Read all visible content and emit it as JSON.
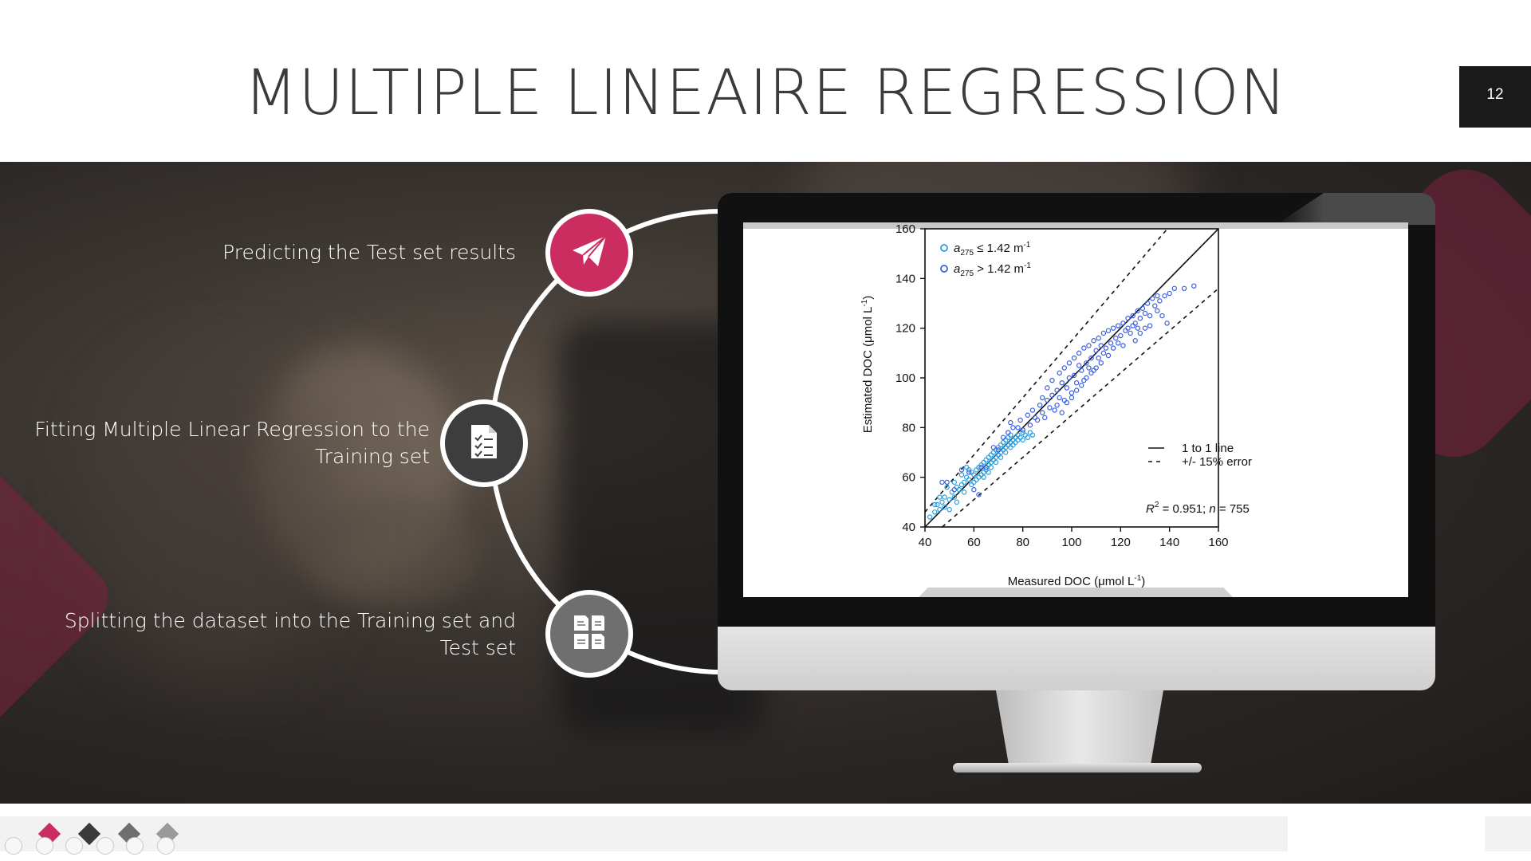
{
  "slide": {
    "title": "MULTIPLE LINEAIRE REGRESSION",
    "page_number": "12"
  },
  "steps": [
    {
      "label": "Predicting the Test set results",
      "icon": "paper-plane-icon",
      "color": "#cc2d61"
    },
    {
      "label_line1": "Fitting Multiple Linear Regression to the",
      "label_line2": "Training set",
      "icon": "checklist-document-icon",
      "color": "#3d3d3d"
    },
    {
      "label_line1": "Splitting the dataset into the Training set and",
      "label_line2": "Test set",
      "icon": "split-documents-icon",
      "color": "#6f6f6f"
    }
  ],
  "chart_data": {
    "type": "scatter",
    "xlabel": "Measured DOC (μmol L",
    "xlabel_sup": "-1",
    "xlabel_end": ")",
    "ylabel": "Estimated DOC (μmol L",
    "ylabel_sup": "-1",
    "ylabel_end": ")",
    "xlim": [
      40,
      160
    ],
    "ylim": [
      40,
      160
    ],
    "xticks": [
      40,
      60,
      80,
      100,
      120,
      140,
      160
    ],
    "yticks": [
      40,
      60,
      80,
      100,
      120,
      140,
      160
    ],
    "legend_top": [
      {
        "sym": "a",
        "sub": "275",
        "rest": " ≤ 1.42 m",
        "sup": "-1",
        "color": "#29a0e0"
      },
      {
        "sym": "a",
        "sub": "275",
        "rest": " > 1.42 m",
        "sup": "-1",
        "color": "#3a5fe0"
      }
    ],
    "legend_lines": [
      {
        "style": "solid",
        "label": "1 to 1 line"
      },
      {
        "style": "dashed",
        "label": "+/- 15% error"
      }
    ],
    "annotation": {
      "r": "R",
      "r_sup": "2",
      "r_text": " = 0.951;  ",
      "n": "n",
      "n_text": " = 755"
    },
    "series": [
      {
        "color": "#29a0e0",
        "points": [
          [
            42,
            44
          ],
          [
            44,
            46
          ],
          [
            45,
            49
          ],
          [
            46,
            47
          ],
          [
            47,
            50
          ],
          [
            48,
            52
          ],
          [
            48,
            48
          ],
          [
            50,
            51
          ],
          [
            51,
            54
          ],
          [
            52,
            52
          ],
          [
            53,
            56
          ],
          [
            54,
            55
          ],
          [
            55,
            57
          ],
          [
            56,
            54
          ],
          [
            56,
            58
          ],
          [
            57,
            60
          ],
          [
            58,
            59
          ],
          [
            59,
            62
          ],
          [
            60,
            61
          ],
          [
            60,
            58
          ],
          [
            61,
            63
          ],
          [
            62,
            64
          ],
          [
            62,
            60
          ],
          [
            63,
            65
          ],
          [
            64,
            66
          ],
          [
            64,
            62
          ],
          [
            65,
            67
          ],
          [
            65,
            63
          ],
          [
            66,
            68
          ],
          [
            66,
            65
          ],
          [
            67,
            69
          ],
          [
            67,
            66
          ],
          [
            68,
            70
          ],
          [
            68,
            67
          ],
          [
            69,
            71
          ],
          [
            69,
            68
          ],
          [
            70,
            72
          ],
          [
            70,
            69
          ],
          [
            71,
            73
          ],
          [
            71,
            70
          ],
          [
            72,
            74
          ],
          [
            72,
            71
          ],
          [
            73,
            72
          ],
          [
            73,
            75
          ],
          [
            74,
            73
          ],
          [
            74,
            76
          ],
          [
            75,
            74
          ],
          [
            75,
            77
          ],
          [
            76,
            75
          ],
          [
            76,
            73
          ],
          [
            77,
            76
          ],
          [
            77,
            74
          ],
          [
            78,
            75
          ],
          [
            78,
            77
          ],
          [
            79,
            76
          ],
          [
            80,
            78
          ],
          [
            80,
            75
          ],
          [
            81,
            77
          ],
          [
            82,
            76
          ],
          [
            83,
            78
          ],
          [
            84,
            77
          ],
          [
            58,
            63
          ],
          [
            59,
            57
          ],
          [
            61,
            59
          ],
          [
            63,
            61
          ],
          [
            46,
            52
          ],
          [
            49,
            56
          ],
          [
            52,
            58
          ],
          [
            55,
            61
          ],
          [
            57,
            64
          ],
          [
            67,
            64
          ],
          [
            69,
            66
          ],
          [
            71,
            68
          ],
          [
            73,
            70
          ],
          [
            75,
            72
          ],
          [
            64,
            60
          ],
          [
            66,
            62
          ],
          [
            44,
            49
          ],
          [
            50,
            47
          ],
          [
            53,
            50
          ]
        ]
      },
      {
        "color": "#3a5fe0",
        "points": [
          [
            47,
            58
          ],
          [
            49,
            58
          ],
          [
            52,
            55
          ],
          [
            55,
            63
          ],
          [
            58,
            62
          ],
          [
            60,
            55
          ],
          [
            62,
            53
          ],
          [
            63,
            64
          ],
          [
            65,
            64
          ],
          [
            68,
            72
          ],
          [
            70,
            71
          ],
          [
            72,
            76
          ],
          [
            74,
            78
          ],
          [
            75,
            82
          ],
          [
            76,
            80
          ],
          [
            78,
            80
          ],
          [
            79,
            83
          ],
          [
            80,
            79
          ],
          [
            82,
            85
          ],
          [
            83,
            81
          ],
          [
            84,
            87
          ],
          [
            85,
            84
          ],
          [
            86,
            83
          ],
          [
            87,
            89
          ],
          [
            88,
            86
          ],
          [
            89,
            84
          ],
          [
            90,
            91
          ],
          [
            91,
            88
          ],
          [
            92,
            93
          ],
          [
            93,
            87
          ],
          [
            94,
            95
          ],
          [
            95,
            92
          ],
          [
            96,
            98
          ],
          [
            97,
            91
          ],
          [
            98,
            96
          ],
          [
            99,
            100
          ],
          [
            100,
            94
          ],
          [
            101,
            101
          ],
          [
            102,
            98
          ],
          [
            103,
            105
          ],
          [
            104,
            103
          ],
          [
            105,
            99
          ],
          [
            106,
            106
          ],
          [
            107,
            104
          ],
          [
            108,
            108
          ],
          [
            109,
            103
          ],
          [
            110,
            111
          ],
          [
            111,
            108
          ],
          [
            112,
            113
          ],
          [
            113,
            110
          ],
          [
            114,
            112
          ],
          [
            115,
            109
          ],
          [
            116,
            114
          ],
          [
            117,
            112
          ],
          [
            118,
            116
          ],
          [
            119,
            114
          ],
          [
            120,
            117
          ],
          [
            121,
            113
          ],
          [
            122,
            119
          ],
          [
            123,
            120
          ],
          [
            124,
            118
          ],
          [
            125,
            121
          ],
          [
            126,
            122
          ],
          [
            127,
            120
          ],
          [
            128,
            124
          ],
          [
            130,
            126
          ],
          [
            132,
            125
          ],
          [
            134,
            129
          ],
          [
            135,
            127
          ],
          [
            136,
            131
          ],
          [
            138,
            133
          ],
          [
            140,
            134
          ],
          [
            142,
            136
          ],
          [
            146,
            136
          ],
          [
            150,
            137
          ],
          [
            94,
            89
          ],
          [
            96,
            86
          ],
          [
            98,
            90
          ],
          [
            100,
            92
          ],
          [
            102,
            95
          ],
          [
            104,
            97
          ],
          [
            106,
            100
          ],
          [
            108,
            102
          ],
          [
            110,
            104
          ],
          [
            112,
            106
          ],
          [
            88,
            92
          ],
          [
            90,
            96
          ],
          [
            92,
            99
          ],
          [
            95,
            102
          ],
          [
            97,
            104
          ],
          [
            99,
            106
          ],
          [
            101,
            108
          ],
          [
            103,
            110
          ],
          [
            105,
            112
          ],
          [
            107,
            113
          ],
          [
            109,
            115
          ],
          [
            111,
            116
          ],
          [
            113,
            118
          ],
          [
            115,
            119
          ],
          [
            117,
            120
          ],
          [
            119,
            121
          ],
          [
            121,
            122
          ],
          [
            123,
            124
          ],
          [
            125,
            125
          ],
          [
            127,
            127
          ],
          [
            129,
            128
          ],
          [
            131,
            130
          ],
          [
            133,
            132
          ],
          [
            135,
            133
          ],
          [
            137,
            125
          ],
          [
            139,
            122
          ],
          [
            126,
            115
          ],
          [
            128,
            118
          ],
          [
            130,
            120
          ],
          [
            132,
            121
          ]
        ]
      }
    ]
  }
}
